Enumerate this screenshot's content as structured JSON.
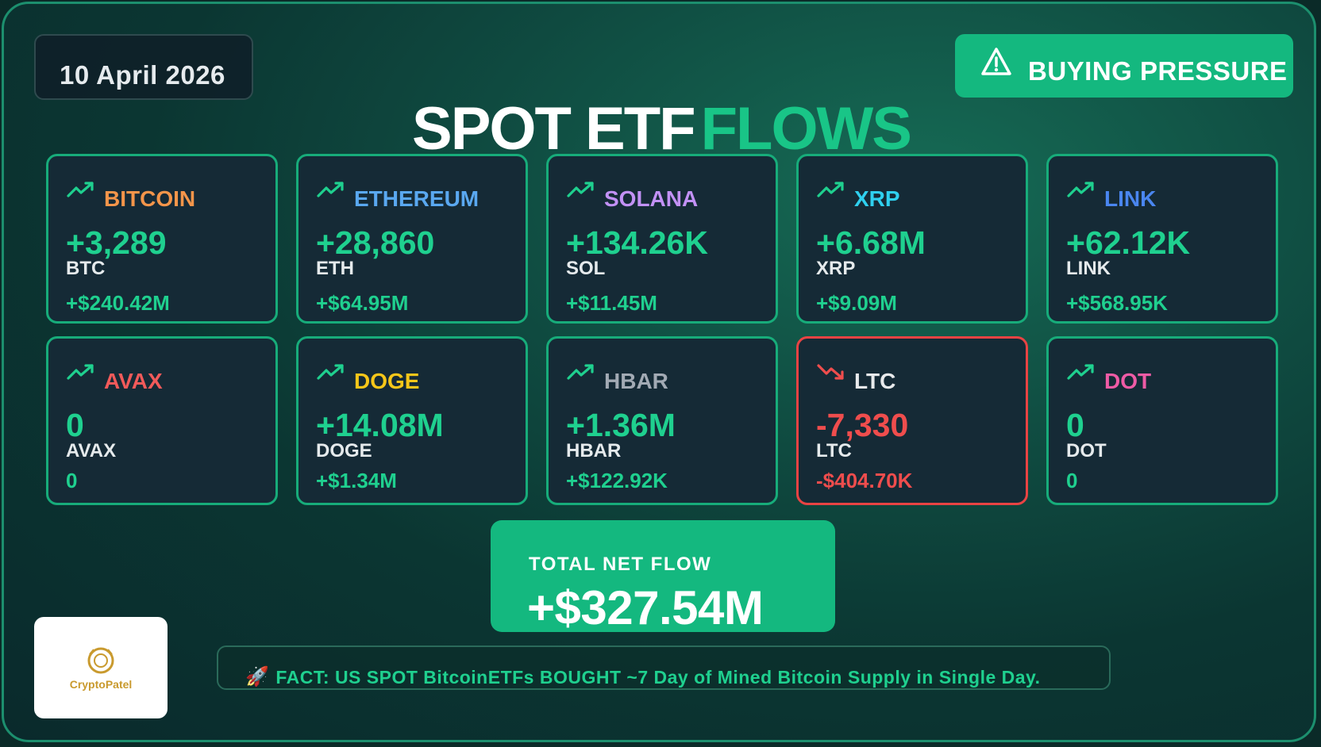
{
  "date": "10 April 2026",
  "badge": {
    "label": "BUYING PRESSURE",
    "icon": "warning-icon"
  },
  "title": {
    "part1": "SPOT ETF",
    "part2": "FLOWS"
  },
  "colors": {
    "positive": "#1fd08f",
    "negative": "#ef4d4d",
    "accent": "#14b87f"
  },
  "assets": [
    {
      "name": "BITCOIN",
      "amount": "+3,289",
      "symbol": "BTC",
      "usd": "+$240.42M",
      "color": "#f4954a",
      "direction": "up"
    },
    {
      "name": "ETHEREUM",
      "amount": "+28,860",
      "symbol": "ETH",
      "usd": "+$64.95M",
      "color": "#5aa8f0",
      "direction": "up"
    },
    {
      "name": "SOLANA",
      "amount": "+134.26K",
      "symbol": "SOL",
      "usd": "+$11.45M",
      "color": "#c291f5",
      "direction": "up"
    },
    {
      "name": "XRP",
      "amount": "+6.68M",
      "symbol": "XRP",
      "usd": "+$9.09M",
      "color": "#2fd0ef",
      "direction": "up"
    },
    {
      "name": "LINK",
      "amount": "+62.12K",
      "symbol": "LINK",
      "usd": "+$568.95K",
      "color": "#4a86f0",
      "direction": "up"
    },
    {
      "name": "AVAX",
      "amount": "0",
      "symbol": "AVAX",
      "usd": "0",
      "color": "#f25a5a",
      "direction": "up"
    },
    {
      "name": "DOGE",
      "amount": "+14.08M",
      "symbol": "DOGE",
      "usd": "+$1.34M",
      "color": "#f6c619",
      "direction": "up"
    },
    {
      "name": "HBAR",
      "amount": "+1.36M",
      "symbol": "HBAR",
      "usd": "+$122.92K",
      "color": "#a2aab4",
      "direction": "up"
    },
    {
      "name": "LTC",
      "amount": "-7,330",
      "symbol": "LTC",
      "usd": "-$404.70K",
      "color": "#e8eaec",
      "direction": "down"
    },
    {
      "name": "DOT",
      "amount": "0",
      "symbol": "DOT",
      "usd": "0",
      "color": "#ee5ba5",
      "direction": "up"
    }
  ],
  "total": {
    "label": "TOTAL NET FLOW",
    "value": "+$327.54M"
  },
  "fact": {
    "icon": "rocket-icon",
    "text": "FACT: US SPOT BitcoinETFs BOUGHT ~7 Day of Mined Bitcoin Supply in Single Day."
  },
  "logo": {
    "text": "CryptoPatel"
  }
}
